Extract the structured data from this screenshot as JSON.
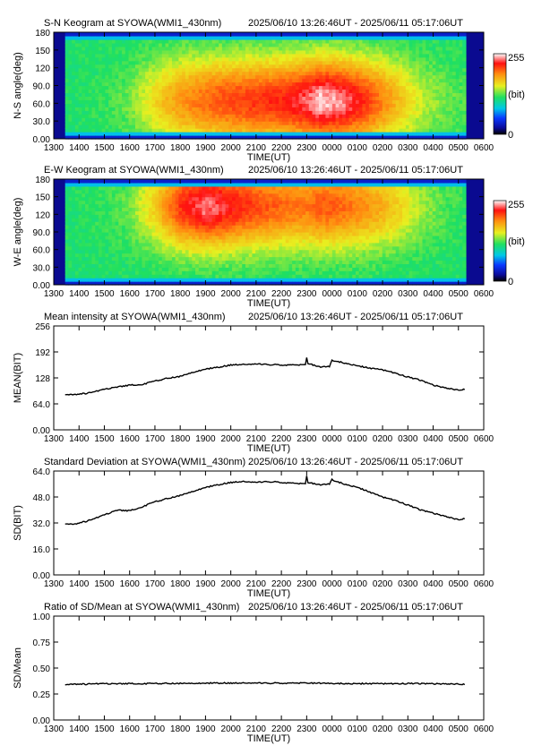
{
  "time_range": "2025/06/10 13:26:46UT - 2025/06/11 05:17:06UT",
  "x_axis": {
    "label": "TIME(UT)",
    "ticks": [
      "1300",
      "1400",
      "1500",
      "1600",
      "1700",
      "1800",
      "1900",
      "2000",
      "2100",
      "2200",
      "2300",
      "0000",
      "0100",
      "0200",
      "0300",
      "0400",
      "0500",
      "0600"
    ]
  },
  "colorbar": {
    "max_label": "255",
    "unit_label": "(bit)",
    "min_label": "0"
  },
  "chart_data": [
    {
      "type": "heatmap",
      "title": "S-N Keogram at SYOWA(WMI1_430nm)",
      "ylabel": "N-S angle(deg)",
      "ylim": [
        0,
        180
      ],
      "yticks": [
        "0.00",
        "30.0",
        "60.0",
        "90.0",
        "120",
        "150",
        "180"
      ],
      "x_hours": [
        13.45,
        29.29
      ],
      "notes": "intensity in bit, 0-255; peak near 2330-0030 UT at 40-80 deg",
      "intensity_profile": {
        "hours": [
          13.45,
          15.0,
          16.0,
          17.0,
          18.0,
          19.0,
          20.0,
          21.0,
          22.0,
          23.0,
          23.5,
          24.5,
          25.5,
          26.5,
          27.5,
          28.5,
          29.29
        ],
        "peak": [
          115,
          120,
          130,
          160,
          185,
          200,
          210,
          215,
          220,
          235,
          250,
          240,
          210,
          175,
          145,
          130,
          125
        ]
      },
      "peak_angle_deg": 65
    },
    {
      "type": "heatmap",
      "title": "E-W Keogram at SYOWA(WMI1_430nm)",
      "ylabel": "W-E angle(deg)",
      "ylim": [
        0,
        180
      ],
      "yticks": [
        "0.00",
        "30.0",
        "60.0",
        "90.0",
        "120",
        "150",
        "180"
      ],
      "x_hours": [
        13.45,
        29.29
      ],
      "notes": "intensity in bit, 0-255; peak near 1830-2030 UT at 120-150 deg",
      "intensity_profile": {
        "hours": [
          13.45,
          15.0,
          16.0,
          17.0,
          18.0,
          19.0,
          20.0,
          21.0,
          22.0,
          23.0,
          23.5,
          24.5,
          25.5,
          26.5,
          27.5,
          28.5,
          29.29
        ],
        "peak": [
          115,
          120,
          130,
          165,
          215,
          240,
          225,
          210,
          200,
          195,
          205,
          200,
          185,
          165,
          140,
          125,
          120
        ]
      },
      "peak_angle_deg": 135
    },
    {
      "type": "line",
      "title": "Mean intensity at SYOWA(WMI1_430nm)",
      "ylabel": "MEAN(BIT)",
      "ylim": [
        0,
        256
      ],
      "yticks": [
        "0.00",
        "64.0",
        "128",
        "192",
        "256"
      ],
      "series": [
        {
          "x": [
            13.45,
            13.8,
            14.5,
            15.0,
            15.5,
            16.0,
            16.5,
            17.0,
            17.5,
            18.0,
            18.5,
            19.0,
            19.5,
            20.0,
            20.5,
            21.0,
            21.5,
            22.0,
            22.5,
            22.95,
            23.0,
            23.05,
            23.5,
            23.9,
            24.0,
            24.1,
            24.5,
            25.0,
            25.5,
            26.0,
            26.5,
            27.0,
            27.5,
            28.0,
            28.5,
            29.0,
            29.29
          ],
          "y": [
            87,
            86,
            92,
            100,
            106,
            110,
            112,
            120,
            127,
            132,
            142,
            150,
            154,
            160,
            161,
            162,
            161,
            160,
            160,
            160,
            178,
            164,
            155,
            156,
            172,
            170,
            165,
            158,
            152,
            148,
            140,
            130,
            122,
            110,
            103,
            98,
            101
          ]
        }
      ]
    },
    {
      "type": "line",
      "title": "Standard Deviation at SYOWA(WMI1_430nm)",
      "ylabel": "SD(BIT)",
      "ylim": [
        0,
        64
      ],
      "yticks": [
        "0.00",
        "16.0",
        "32.0",
        "48.0",
        "64.0"
      ],
      "series": [
        {
          "x": [
            13.45,
            13.8,
            14.5,
            15.0,
            15.5,
            16.0,
            16.5,
            17.0,
            17.5,
            18.0,
            18.5,
            19.0,
            19.5,
            20.0,
            20.5,
            21.0,
            21.5,
            22.0,
            22.5,
            22.95,
            23.0,
            23.05,
            23.5,
            23.9,
            24.0,
            24.1,
            24.5,
            25.0,
            25.5,
            26.0,
            26.5,
            27.0,
            27.5,
            28.0,
            28.5,
            29.0,
            29.29
          ],
          "y": [
            31.5,
            31,
            34,
            37,
            40,
            39.5,
            42,
            45,
            47,
            49,
            51.5,
            54,
            55.5,
            57,
            57.5,
            57,
            57.5,
            57,
            56.5,
            56,
            61,
            57,
            55.5,
            56,
            59,
            58,
            56,
            54,
            51,
            48,
            46,
            43,
            40,
            38,
            36,
            34,
            35
          ]
        }
      ]
    },
    {
      "type": "line",
      "title": "Ratio of SD/Mean at SYOWA(WMI1_430nm)",
      "ylabel": "SD/Mean",
      "ylim": [
        0,
        1
      ],
      "yticks": [
        "0.00",
        "0.25",
        "0.50",
        "0.75",
        "1.00"
      ],
      "series": [
        {
          "x": [
            13.45,
            15.0,
            17.0,
            19.0,
            21.0,
            23.0,
            25.0,
            27.0,
            29.29
          ],
          "y": [
            0.34,
            0.35,
            0.35,
            0.355,
            0.355,
            0.355,
            0.35,
            0.35,
            0.345
          ]
        }
      ]
    }
  ]
}
